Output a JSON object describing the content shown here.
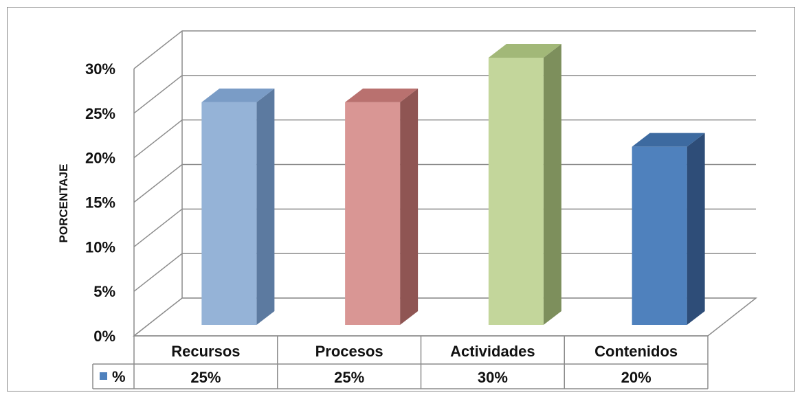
{
  "chart_data": {
    "type": "bar",
    "categories": [
      "Recursos",
      "Procesos",
      "Actividades",
      "Contenidos"
    ],
    "series": [
      {
        "name": "%",
        "values": [
          25,
          25,
          30,
          20
        ],
        "value_labels": [
          "25%",
          "25%",
          "30%",
          "20%"
        ]
      }
    ],
    "ylabel": "PORCENTAJE",
    "ylim": [
      0,
      30
    ],
    "y_ticks": [
      "0%",
      "5%",
      "10%",
      "15%",
      "20%",
      "25%",
      "30%"
    ],
    "grid": true,
    "legend": "data-table",
    "bar_colors": [
      {
        "front": "#95b3d7",
        "side": "#5c7aa0",
        "top": "#7a9cc6"
      },
      {
        "front": "#d99694",
        "side": "#8f5553",
        "top": "#b9716f"
      },
      {
        "front": "#c3d69b",
        "side": "#7d8f5c",
        "top": "#a2b878"
      },
      {
        "front": "#4f81bd",
        "side": "#2e4d78",
        "top": "#3d6aa0"
      }
    ],
    "legend_color": "#4f81bd"
  }
}
